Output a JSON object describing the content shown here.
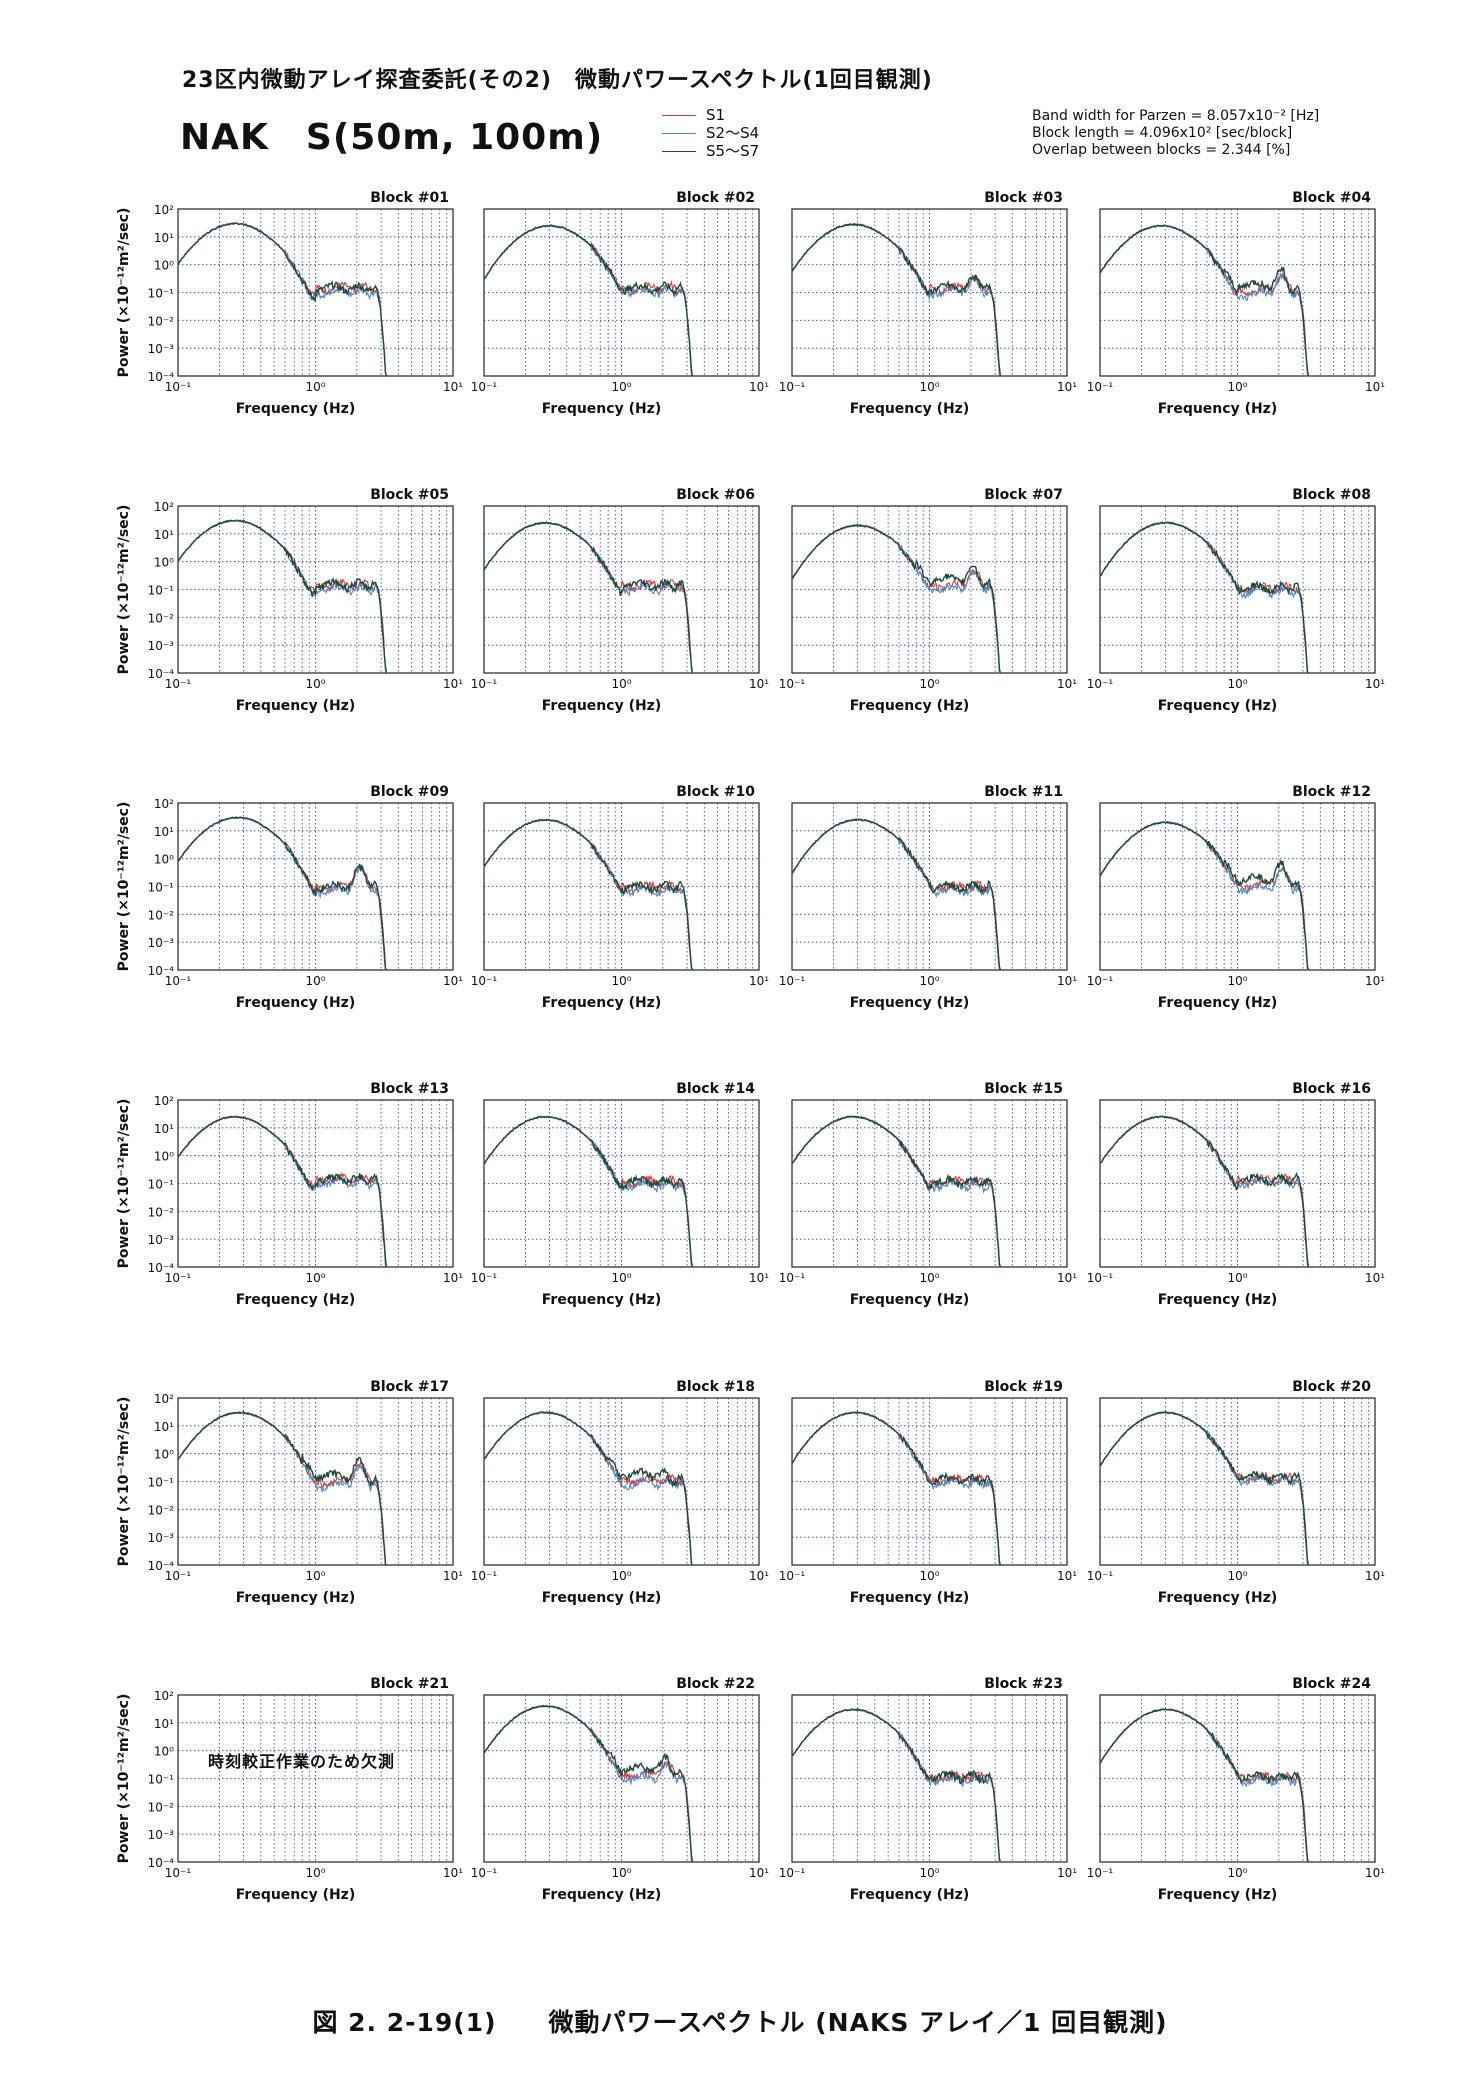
{
  "header": {
    "title": "23区内微動アレイ探査委託(その2)　微動パワースペクトル(1回目観測)",
    "subtitle": "NAK　S(50m, 100m)"
  },
  "legend": [
    {
      "label": "S1",
      "color": "#d23c3c"
    },
    {
      "label": "S2～S4",
      "color": "#4f86c6"
    },
    {
      "label": "S5～S7",
      "color": "#1e4a3a"
    }
  ],
  "params": {
    "line1": "Band width for Parzen = 8.057x10⁻² [Hz]",
    "line2": "Block length = 4.096x10² [sec/block]",
    "line3": "Overlap between blocks = 2.344 [%]"
  },
  "axis": {
    "xlabel": "Frequency (Hz)",
    "ylabel": "Power (×10⁻¹²m²/sec)",
    "x_ticks": [
      "10⁻¹",
      "10⁰",
      "10¹"
    ],
    "y_ticks": [
      "10²",
      "10¹",
      "10⁰",
      "10⁻¹",
      "10⁻²",
      "10⁻³",
      "10⁻⁴"
    ]
  },
  "missing_note": "時刻較正作業のため欠測",
  "caption": "図 2. 2-19(1)　　微動パワースペクトル (NAKS アレイ／1 回目観測)",
  "chart_data": {
    "type": "line",
    "xscale": "log",
    "yscale": "log",
    "xlim": [
      0.1,
      10
    ],
    "ylim": [
      0.0001,
      100
    ],
    "xlabel": "Frequency (Hz)",
    "ylabel": "Power (×10⁻¹²m²/sec)",
    "grid": true,
    "series_names": [
      "S1",
      "S2～S4",
      "S5～S7"
    ],
    "blocks": [
      {
        "title": "Block #01",
        "peak": 30,
        "peak_f": 0.26,
        "low": 0.02,
        "lowvar": 1,
        "plateau": 0.15,
        "bump": 0
      },
      {
        "title": "Block #02",
        "peak": 25,
        "peak_f": 0.3,
        "low": 0.015,
        "lowvar": 1,
        "plateau": 0.15,
        "bump": 0
      },
      {
        "title": "Block #03",
        "peak": 28,
        "peak_f": 0.28,
        "low": 0.08,
        "lowvar": 2,
        "plateau": 0.15,
        "bump": 0.2
      },
      {
        "title": "Block #04",
        "peak": 25,
        "peak_f": 0.28,
        "low": 0.12,
        "lowvar": 3,
        "plateau": 0.12,
        "bump": 0.3
      },
      {
        "title": "Block #05",
        "peak": 30,
        "peak_f": 0.26,
        "low": 0.03,
        "lowvar": 1,
        "plateau": 0.15,
        "bump": 0
      },
      {
        "title": "Block #06",
        "peak": 25,
        "peak_f": 0.28,
        "low": 0.02,
        "lowvar": 1,
        "plateau": 0.15,
        "bump": 0
      },
      {
        "title": "Block #07",
        "peak": 20,
        "peak_f": 0.3,
        "low": 0.15,
        "lowvar": 3,
        "plateau": 0.15,
        "bump": 0.3
      },
      {
        "title": "Block #08",
        "peak": 25,
        "peak_f": 0.3,
        "low": 0.03,
        "lowvar": 1,
        "plateau": 0.12,
        "bump": 0
      },
      {
        "title": "Block #09",
        "peak": 30,
        "peak_f": 0.27,
        "low": 0.02,
        "lowvar": 1,
        "plateau": 0.1,
        "bump": 0.4
      },
      {
        "title": "Block #10",
        "peak": 25,
        "peak_f": 0.28,
        "low": 0.015,
        "lowvar": 1,
        "plateau": 0.1,
        "bump": 0
      },
      {
        "title": "Block #11",
        "peak": 25,
        "peak_f": 0.3,
        "low": 0.02,
        "lowvar": 1,
        "plateau": 0.1,
        "bump": 0
      },
      {
        "title": "Block #12",
        "peak": 20,
        "peak_f": 0.3,
        "low": 0.1,
        "lowvar": 3,
        "plateau": 0.12,
        "bump": 0.3
      },
      {
        "title": "Block #13",
        "peak": 25,
        "peak_f": 0.26,
        "low": 0.02,
        "lowvar": 1,
        "plateau": 0.15,
        "bump": 0
      },
      {
        "title": "Block #14",
        "peak": 25,
        "peak_f": 0.28,
        "low": 0.015,
        "lowvar": 1,
        "plateau": 0.12,
        "bump": 0
      },
      {
        "title": "Block #15",
        "peak": 25,
        "peak_f": 0.28,
        "low": 0.05,
        "lowvar": 2,
        "plateau": 0.12,
        "bump": 0
      },
      {
        "title": "Block #16",
        "peak": 25,
        "peak_f": 0.28,
        "low": 0.02,
        "lowvar": 1,
        "plateau": 0.15,
        "bump": 0
      },
      {
        "title": "Block #17",
        "peak": 30,
        "peak_f": 0.28,
        "low": 0.3,
        "lowvar": 3,
        "plateau": 0.1,
        "bump": 0.3
      },
      {
        "title": "Block #18",
        "peak": 30,
        "peak_f": 0.28,
        "low": 0.1,
        "lowvar": 3,
        "plateau": 0.12,
        "bump": 0
      },
      {
        "title": "Block #19",
        "peak": 30,
        "peak_f": 0.29,
        "low": 0.03,
        "lowvar": 1,
        "plateau": 0.12,
        "bump": 0
      },
      {
        "title": "Block #20",
        "peak": 30,
        "peak_f": 0.3,
        "low": 0.02,
        "lowvar": 1,
        "plateau": 0.15,
        "bump": 0
      },
      {
        "title": "Block #21",
        "missing": true
      },
      {
        "title": "Block #22",
        "peak": 40,
        "peak_f": 0.28,
        "low": 0.5,
        "lowvar": 3,
        "plateau": 0.15,
        "bump": 0.2
      },
      {
        "title": "Block #23",
        "peak": 30,
        "peak_f": 0.28,
        "low": 0.03,
        "lowvar": 2,
        "plateau": 0.12,
        "bump": 0
      },
      {
        "title": "Block #24",
        "peak": 30,
        "peak_f": 0.3,
        "low": 0.05,
        "lowvar": 2,
        "plateau": 0.12,
        "bump": 0
      }
    ]
  }
}
